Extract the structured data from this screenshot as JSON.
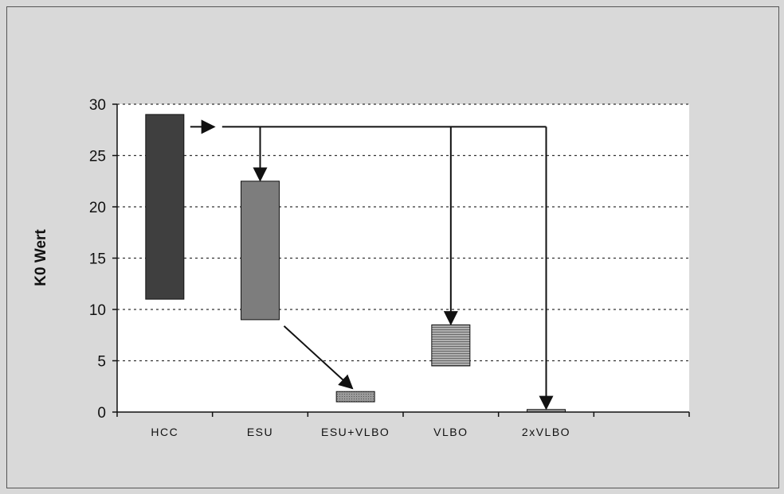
{
  "chart_data": {
    "type": "floating-bar",
    "ylabel": "K0 Wert",
    "xlabel": "",
    "ylim": [
      0,
      30
    ],
    "y_ticks": [
      "0",
      "5",
      "10",
      "15",
      "20",
      "25",
      "30"
    ],
    "grid": "horizontal-dashed",
    "categories": [
      "HCC",
      "ESU",
      "ESU+VLBO",
      "VLBO",
      "2xVLBO",
      ""
    ],
    "ranges": [
      {
        "category": "HCC",
        "low": 11,
        "high": 29
      },
      {
        "category": "ESU",
        "low": 9,
        "high": 22.5
      },
      {
        "category": "ESU+VLBO",
        "low": 1,
        "high": 2
      },
      {
        "category": "VLBO",
        "low": 4.5,
        "high": 8.5
      },
      {
        "category": "2xVLBO",
        "low": 0,
        "high": 0.25
      }
    ],
    "colors": {
      "HCC": "#3f3f3f",
      "ESU": "#7d7d7d",
      "ESU+VLBO": "#8c8c8c",
      "VLBO": "#9a9a9a",
      "2xVLBO": "#9a9a9a",
      "plot_background": "#ffffff",
      "figure_background": "#d9d9d9"
    },
    "annotations": [
      {
        "type": "arrow",
        "from": "HCC",
        "to": "ESU"
      },
      {
        "type": "arrow",
        "from": "HCC",
        "to": "VLBO"
      },
      {
        "type": "arrow",
        "from": "HCC",
        "to": "2xVLBO"
      },
      {
        "type": "arrow",
        "from": "ESU",
        "to": "ESU+VLBO"
      }
    ]
  }
}
